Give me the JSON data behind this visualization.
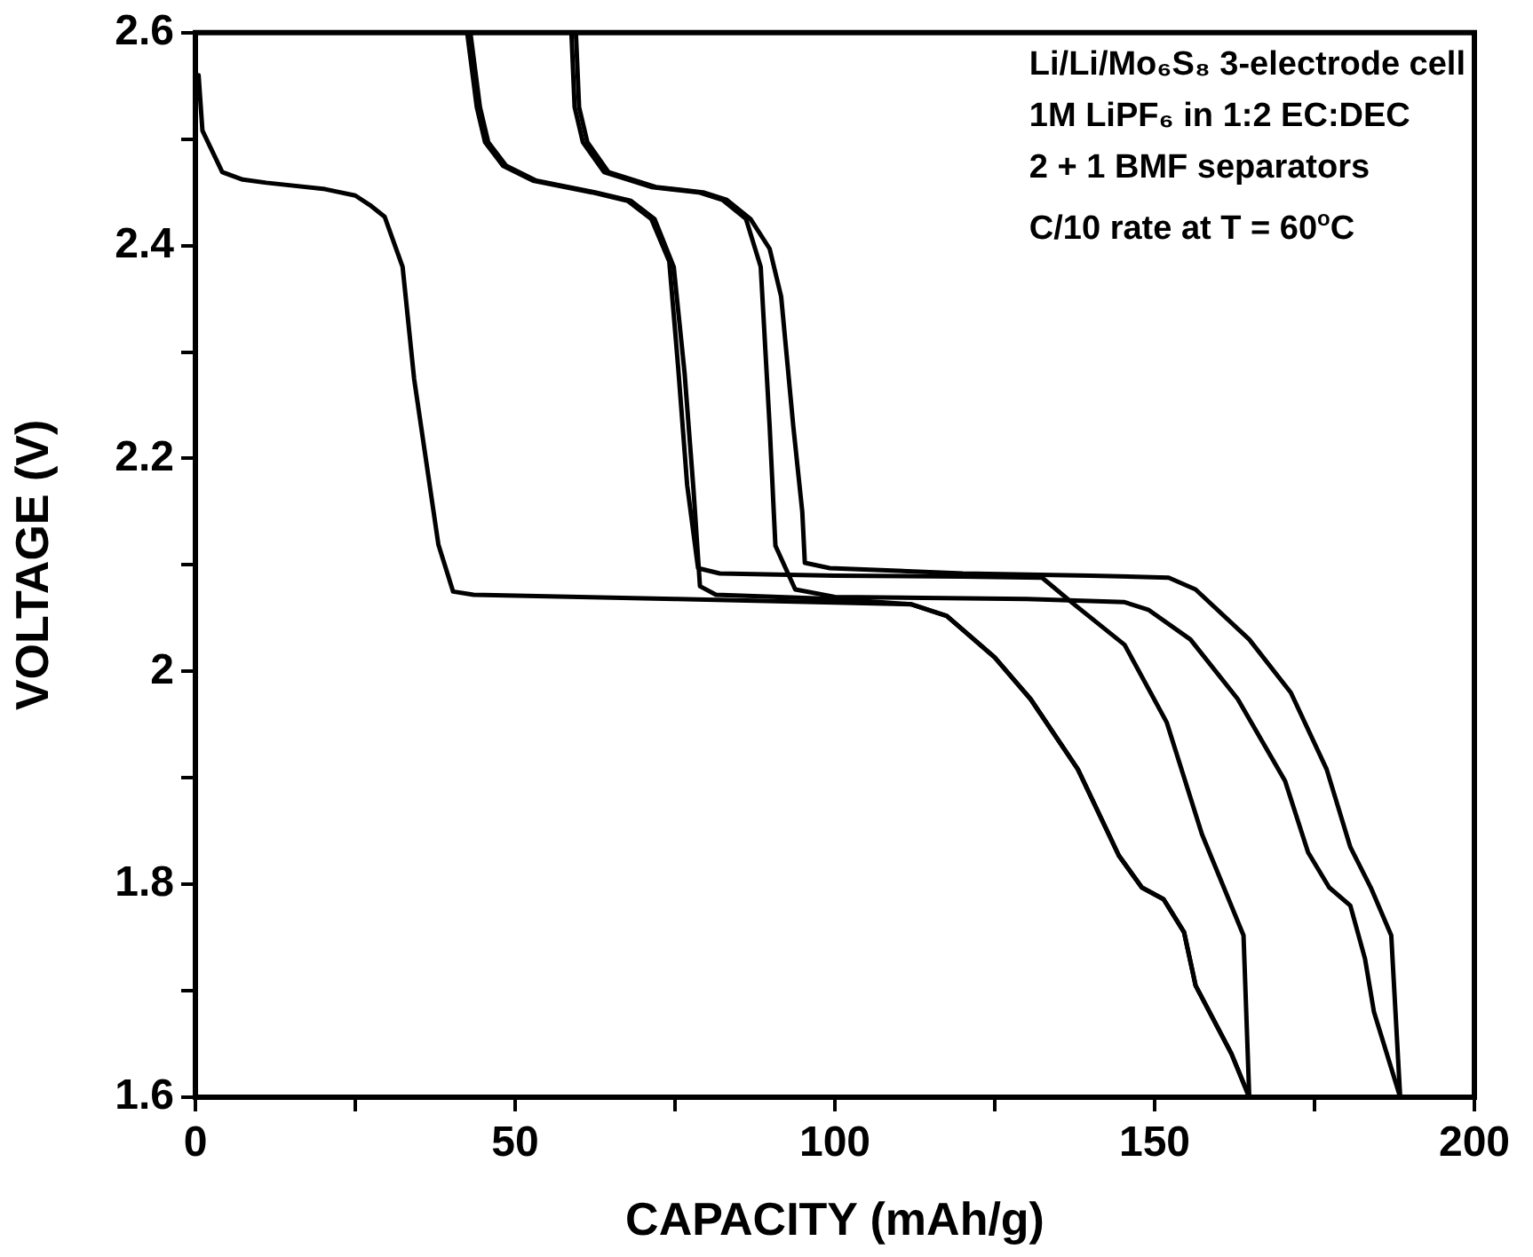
{
  "chart_data": {
    "type": "line",
    "xlabel": "CAPACITY (mAh/g)",
    "ylabel": "VOLTAGE (V)",
    "xlim": [
      0,
      200
    ],
    "xticks": [
      0,
      {
        "value": 25,
        "label": null
      },
      50,
      {
        "value": 75,
        "label": null
      },
      100,
      {
        "value": 125,
        "label": null
      },
      150,
      {
        "value": 175,
        "label": null
      },
      200
    ],
    "ylim": [
      1.6,
      2.6
    ],
    "yticks": [
      1.6,
      {
        "value": 1.7,
        "label": null
      },
      1.8,
      {
        "value": 1.9,
        "label": null
      },
      2,
      {
        "value": 2.1,
        "label": null
      },
      2.2,
      {
        "value": 2.3,
        "label": null
      },
      2.4,
      {
        "value": 2.5,
        "label": null
      },
      2.6
    ],
    "grid": false,
    "legend": false,
    "marker": "none",
    "line_style": "solid",
    "annotations": [
      "Li/Li/Mo₆S₈ 3-electrode cell",
      "1M LiPF₆ in 1:2 EC:DEC",
      "2 + 1 BMF separators",
      "C/10 rate at T = 60$^{o}$C"
    ],
    "series": [
      {
        "color": "#000000",
        "x": [
          0.5,
          1.1,
          4.2,
          7.4,
          11.1,
          20.3,
          25,
          27.3,
          29.6,
          32.4,
          34.2,
          38,
          40.3,
          43.5,
          75,
          112,
          117.5,
          125,
          130.6,
          138,
          144.4,
          148,
          151.4,
          154.6,
          156.4,
          162,
          164.8
        ],
        "values": [
          2.56,
          2.508,
          2.469,
          2.462,
          2.459,
          2.453,
          2.447,
          2.438,
          2.427,
          2.38,
          2.275,
          2.119,
          2.075,
          2.072,
          2.068,
          2.063,
          2.052,
          2.013,
          1.974,
          1.908,
          1.827,
          1.797,
          1.786,
          1.755,
          1.705,
          1.641,
          1.6
        ]
      },
      {
        "color": "#000000",
        "x": [
          42.5,
          44,
          45.3,
          48.1,
          52.8,
          62,
          67.6,
          71.3,
          74.1,
          75.5,
          76.9,
          78.6,
          82,
          100,
          120,
          132.4,
          137,
          145.3,
          151.9,
          157.4,
          163.9,
          164.8
        ],
        "values": [
          2.6,
          2.53,
          2.497,
          2.475,
          2.461,
          2.45,
          2.442,
          2.425,
          2.385,
          2.285,
          2.175,
          2.097,
          2.092,
          2.09,
          2.089,
          2.088,
          2.065,
          2.025,
          1.952,
          1.847,
          1.752,
          1.6
        ]
      },
      {
        "color": "#000000",
        "x": [
          43,
          44.5,
          45.8,
          48.6,
          53.3,
          62.5,
          68.1,
          71.8,
          74.8,
          76.5,
          77.9,
          78.9,
          81.4,
          100,
          112,
          117.5,
          125,
          130.6,
          138,
          144.4,
          148,
          151.4,
          154.6,
          156.4,
          162,
          164.8
        ],
        "values": [
          2.6,
          2.53,
          2.497,
          2.475,
          2.461,
          2.45,
          2.442,
          2.425,
          2.38,
          2.28,
          2.17,
          2.08,
          2.072,
          2.068,
          2.063,
          2.052,
          2.013,
          1.974,
          1.908,
          1.827,
          1.797,
          1.786,
          1.755,
          1.705,
          1.641,
          1.6
        ]
      },
      {
        "color": "#000000",
        "x": [
          58.8,
          59.3,
          60.6,
          63.9,
          71.3,
          78.7,
          82.4,
          86.1,
          88.4,
          89.8,
          90.7,
          93.8,
          100,
          130,
          145.3,
          149,
          155.6,
          163,
          170.4,
          174,
          177.3,
          180.6,
          182.9,
          184.3,
          188.4
        ],
        "values": [
          2.6,
          2.53,
          2.497,
          2.469,
          2.455,
          2.45,
          2.443,
          2.425,
          2.38,
          2.23,
          2.118,
          2.077,
          2.07,
          2.068,
          2.065,
          2.058,
          2.03,
          1.974,
          1.897,
          1.83,
          1.797,
          1.78,
          1.73,
          1.68,
          1.6
        ]
      },
      {
        "color": "#000000",
        "x": [
          59.5,
          60,
          61.3,
          64.6,
          72,
          79.4,
          83.1,
          86.8,
          89.8,
          91.6,
          93.5,
          94.9,
          95.3,
          99.2,
          120,
          140,
          152.2,
          156.4,
          164.8,
          171.3,
          176.9,
          180.6,
          183.8,
          187,
          188.4
        ],
        "values": [
          2.6,
          2.53,
          2.497,
          2.469,
          2.455,
          2.45,
          2.443,
          2.425,
          2.397,
          2.352,
          2.23,
          2.15,
          2.102,
          2.097,
          2.092,
          2.09,
          2.088,
          2.077,
          2.03,
          1.98,
          1.908,
          1.835,
          1.797,
          1.752,
          1.6
        ]
      }
    ]
  }
}
